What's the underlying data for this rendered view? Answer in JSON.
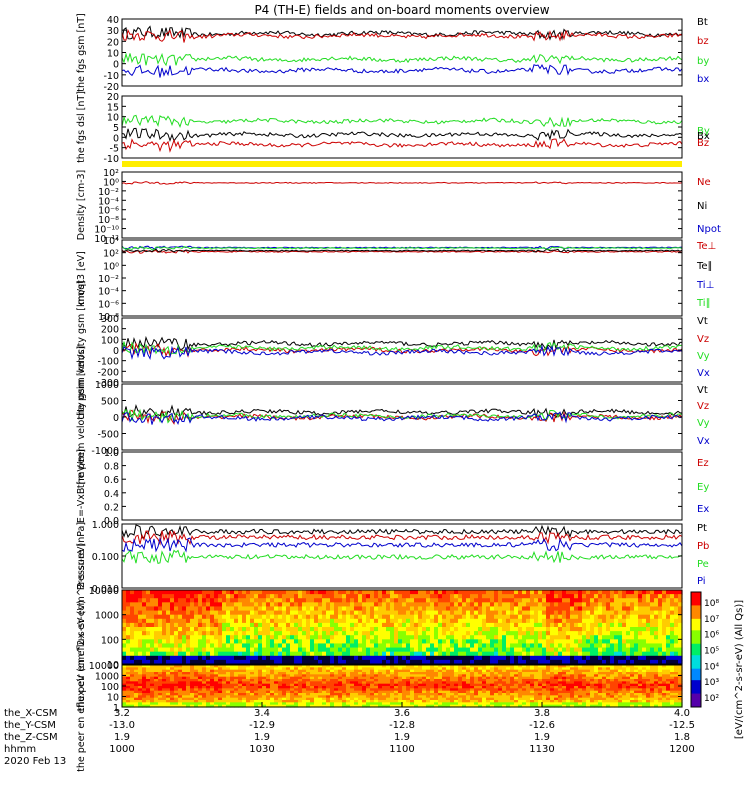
{
  "title": "P4 (TH-E) fields and on-board moments overview",
  "colors": {
    "black": "#000000",
    "red": "#cc0000",
    "green": "#22dd22",
    "blue": "#0000cc",
    "yellow": "#ffee00"
  },
  "chart_data": [
    {
      "type": "line",
      "panel": "fgs-gsm",
      "ylabel": "the fgs gsm [nT]",
      "ylim": [
        -20,
        40
      ],
      "yticks": [
        "40",
        "30",
        "20",
        "10",
        "0",
        "-10",
        "-20"
      ],
      "series": [
        {
          "name": "Bt",
          "color": "#000000",
          "level": 27
        },
        {
          "name": "bz",
          "color": "#cc0000",
          "level": 25
        },
        {
          "name": "by",
          "color": "#22dd22",
          "level": 4
        },
        {
          "name": "bx",
          "color": "#0000cc",
          "level": -6
        }
      ]
    },
    {
      "type": "line",
      "panel": "fgs-dsl",
      "ylabel": "the fgs dsl [nT]",
      "ylim": [
        -12,
        20
      ],
      "yticks": [
        "20",
        "15",
        "10",
        "5",
        "0",
        "-5",
        "-10"
      ],
      "series": [
        {
          "name": "By",
          "color": "#22dd22",
          "level": 7
        },
        {
          "name": "Bx",
          "color": "#000000",
          "level": 0
        },
        {
          "name": "Bz",
          "color": "#cc0000",
          "level": -5
        }
      ]
    },
    {
      "type": "line",
      "panel": "density",
      "ylabel": "Density [cm-3]",
      "ylim": [
        1e-12,
        100
      ],
      "scale": "log",
      "yticks": [
        "10²",
        "10⁰",
        "10⁻²",
        "10⁻⁴",
        "10⁻⁶",
        "10⁻⁸",
        "10⁻¹⁰",
        "10⁻¹²"
      ],
      "series": [
        {
          "name": "Ne",
          "color": "#cc0000",
          "level": 0.5
        },
        {
          "name": "Ni",
          "color": "#000000"
        },
        {
          "name": "Npot",
          "color": "#0000cc"
        }
      ]
    },
    {
      "type": "line",
      "panel": "moat3",
      "ylabel": "moqt3 [eV]",
      "ylim": [
        1e-08,
        100000
      ],
      "scale": "log",
      "yticks": [
        "10⁴",
        "10²",
        "10⁰",
        "10⁻²",
        "10⁻⁴",
        "10⁻⁶",
        "10⁻⁸"
      ],
      "series": [
        {
          "name": "Te⊥",
          "color": "#cc0000",
          "level": 1000
        },
        {
          "name": "Te∥",
          "color": "#000000",
          "level": 1500
        },
        {
          "name": "Ti⊥",
          "color": "#0000cc",
          "level": 5000
        },
        {
          "name": "Ti∥",
          "color": "#22dd22",
          "level": 4000
        }
      ]
    },
    {
      "type": "line",
      "panel": "peim-velocity",
      "ylabel": "the peim velocity gsm [km/s]",
      "ylim": [
        -300,
        300
      ],
      "yticks": [
        "300",
        "200",
        "100",
        "0",
        "-100",
        "-200",
        "-300"
      ],
      "series": [
        {
          "name": "Vt",
          "color": "#000000",
          "level": 60
        },
        {
          "name": "Vz",
          "color": "#cc0000",
          "level": 0
        },
        {
          "name": "Vy",
          "color": "#22dd22",
          "level": 20
        },
        {
          "name": "Vx",
          "color": "#0000cc",
          "level": -20
        }
      ]
    },
    {
      "type": "line",
      "panel": "peem-velocity",
      "ylabel": "the peem velocity gsm [km/s]",
      "ylim": [
        -1000,
        1000
      ],
      "yticks": [
        "1000",
        "500",
        "0",
        "-500",
        "-1000"
      ],
      "series": [
        {
          "name": "Vt",
          "color": "#000000",
          "level": 150
        },
        {
          "name": "Vz",
          "color": "#cc0000",
          "level": 0
        },
        {
          "name": "Vy",
          "color": "#22dd22",
          "level": 30
        },
        {
          "name": "Vx",
          "color": "#0000cc",
          "level": -30
        }
      ]
    },
    {
      "type": "line",
      "panel": "efield",
      "ylabel": "E=-VxB [mV/m]",
      "ylim": [
        0,
        1
      ],
      "yticks": [
        "1.0",
        "0.8",
        "0.6",
        "0.4",
        "0.2",
        "0.0"
      ],
      "series": [
        {
          "name": "Ez",
          "color": "#cc0000"
        },
        {
          "name": "Ey",
          "color": "#22dd22"
        },
        {
          "name": "Ex",
          "color": "#0000cc"
        }
      ]
    },
    {
      "type": "line",
      "panel": "pressure",
      "ylabel": "Pressure [nPa]",
      "ylim": [
        0.003,
        1
      ],
      "scale": "log",
      "yticks": [
        "1.000",
        "0.100",
        "0.010"
      ],
      "series": [
        {
          "name": "Pt",
          "color": "#000000",
          "level": 0.5
        },
        {
          "name": "Pb",
          "color": "#cc0000",
          "level": 0.3
        },
        {
          "name": "Pe",
          "color": "#22dd22",
          "level": 0.05
        },
        {
          "name": "Pi",
          "color": "#0000cc",
          "level": 0.15
        }
      ]
    },
    {
      "type": "heatmap",
      "panel": "peir-spectrogram",
      "ylabel": "the peir en eflux eV (cm^2-s-sr-eV)",
      "yscale": "log",
      "ylim": [
        3,
        30000
      ],
      "yticks": [
        "10000",
        "1000",
        "100",
        "10"
      ]
    },
    {
      "type": "heatmap",
      "panel": "peer-spectrogram",
      "ylabel": "the peer en eflux eV (cm^2-s-sr-eV)",
      "yscale": "log",
      "ylim": [
        1,
        30000
      ],
      "yticks": [
        "10000",
        "1000",
        "100",
        "10",
        "1"
      ]
    }
  ],
  "colorbar": {
    "label": "[eV/(cm^2-s-sr-eV) (All Qs)]",
    "ticks": [
      "10⁸",
      "10⁷",
      "10⁶",
      "10⁵",
      "10⁴",
      "10³",
      "10²"
    ],
    "scale": "log",
    "range": [
      100,
      100000000
    ]
  },
  "xaxis": {
    "rows": [
      {
        "label": "the_X-CSM",
        "values": [
          "3.2",
          "3.4",
          "3.6",
          "3.8",
          "4.0"
        ]
      },
      {
        "label": "the_Y-CSM",
        "values": [
          "-13.0",
          "-12.9",
          "-12.8",
          "-12.6",
          "-12.5"
        ]
      },
      {
        "label": "the_Z-CSM",
        "values": [
          "1.9",
          "1.9",
          "1.9",
          "1.9",
          "1.8"
        ]
      },
      {
        "label": "hhmm",
        "values": [
          "1000",
          "1030",
          "1100",
          "1130",
          "1200"
        ]
      }
    ],
    "date": "2020 Feb 13"
  }
}
